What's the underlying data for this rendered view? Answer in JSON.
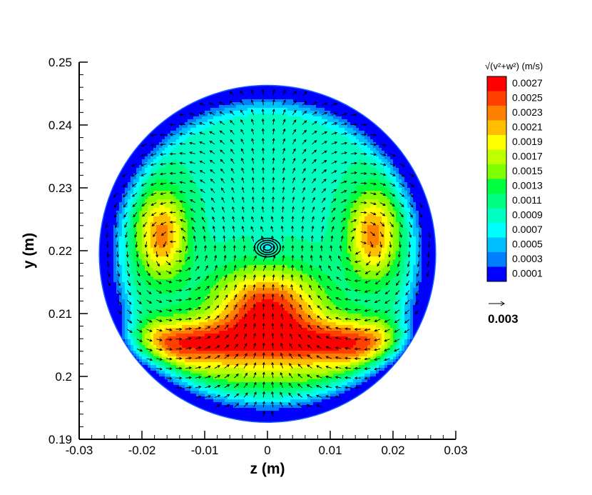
{
  "chart_data": {
    "type": "contour-vector",
    "xlabel": "z  (m)",
    "ylabel": "y  (m)",
    "xlim": [
      -0.03,
      0.03
    ],
    "ylim": [
      0.19,
      0.25
    ],
    "xticks": [
      "-0.03",
      "-0.02",
      "-0.01",
      "0",
      "0.01",
      "0.02",
      "0.03"
    ],
    "yticks": [
      "0.19",
      "0.2",
      "0.21",
      "0.22",
      "0.23",
      "0.24",
      "0.25"
    ],
    "domain_circle": {
      "center_z": 0.0,
      "center_y": 0.2195,
      "radius": 0.0268
    },
    "vortex_center": {
      "z": 0.0,
      "y": 0.2205
    },
    "legend": {
      "title": "√(v²+w²)  (m/s)",
      "levels": [
        "0.0027",
        "0.0025",
        "0.0023",
        "0.0021",
        "0.0019",
        "0.0017",
        "0.0015",
        "0.0013",
        "0.0011",
        "0.0009",
        "0.0007",
        "0.0005",
        "0.0003",
        "0.0001"
      ],
      "colors": [
        "#ff0000",
        "#ff4000",
        "#ff8000",
        "#ffbf00",
        "#ffff00",
        "#c0ff00",
        "#80ff00",
        "#00ff40",
        "#00ff80",
        "#00ffc0",
        "#00ffff",
        "#00bfff",
        "#0080ff",
        "#0000ff"
      ]
    },
    "reference_vector": {
      "label": "0.003",
      "value": 0.003
    }
  }
}
